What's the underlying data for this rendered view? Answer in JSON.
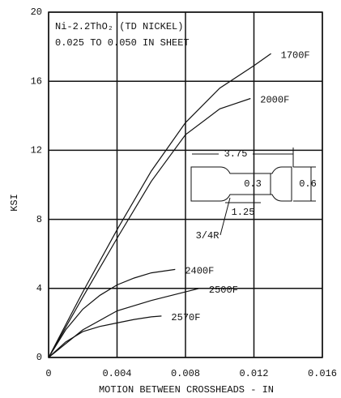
{
  "chart_data": {
    "type": "line",
    "title": "Ni-2.2ThO₂ (TD NICKEL)",
    "subtitle": "0.025 TO 0.050 IN SHEET",
    "x_label": "MOTION BETWEEN CROSSHEADS - IN",
    "y_label": "KSI",
    "xlim": [
      0,
      0.016
    ],
    "xticks": [
      0,
      0.004,
      0.008,
      0.012,
      0.016
    ],
    "ylim": [
      0,
      20
    ],
    "yticks": [
      0,
      4,
      8,
      12,
      16,
      20
    ],
    "grid": true,
    "series": [
      {
        "name": "1700F",
        "color": "#111111",
        "x": [
          0,
          0.002,
          0.004,
          0.006,
          0.008,
          0.01,
          0.012,
          0.013
        ],
        "values": [
          0,
          3.8,
          7.4,
          10.8,
          13.6,
          15.6,
          16.9,
          17.6
        ]
      },
      {
        "name": "2000F",
        "color": "#111111",
        "x": [
          0,
          0.002,
          0.004,
          0.006,
          0.008,
          0.01,
          0.0118
        ],
        "values": [
          0,
          3.5,
          6.9,
          10.2,
          12.9,
          14.4,
          15.0
        ]
      },
      {
        "name": "2400F",
        "color": "#111111",
        "x": [
          0,
          0.001,
          0.002,
          0.003,
          0.004,
          0.005,
          0.006,
          0.0074
        ],
        "values": [
          0,
          1.6,
          2.8,
          3.6,
          4.2,
          4.6,
          4.9,
          5.1
        ]
      },
      {
        "name": "2500F",
        "color": "#111111",
        "x": [
          0,
          0.002,
          0.004,
          0.006,
          0.008,
          0.0088
        ],
        "values": [
          0,
          1.6,
          2.7,
          3.3,
          3.8,
          4.0
        ]
      },
      {
        "name": "2570F",
        "color": "#111111",
        "x": [
          0,
          0.001,
          0.002,
          0.003,
          0.004,
          0.005,
          0.006,
          0.0066
        ],
        "values": [
          0,
          0.9,
          1.5,
          1.8,
          2.0,
          2.2,
          2.35,
          2.4
        ]
      }
    ],
    "annotations": [
      "3.75",
      "0.3",
      "0.6",
      "1.25",
      "3/4R"
    ]
  }
}
